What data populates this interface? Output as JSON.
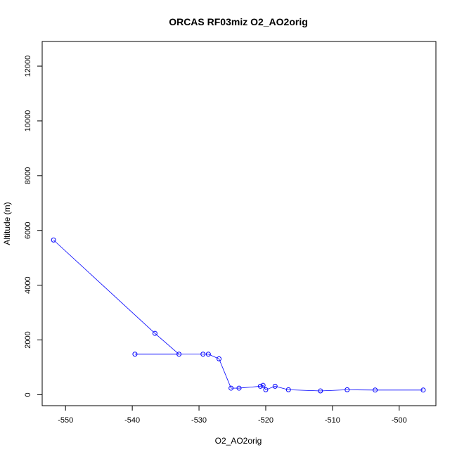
{
  "chart_data": {
    "type": "line",
    "title": "ORCAS RF03miz O2_AO2orig",
    "xlabel": "O2_AO2orig",
    "ylabel": "Altitude (m)",
    "xlim": [
      -553.5,
      -494.5
    ],
    "ylim": [
      -400,
      12900
    ],
    "x_ticks": [
      -550,
      -540,
      -530,
      -520,
      -510,
      -500
    ],
    "y_ticks": [
      0,
      2000,
      4000,
      6000,
      8000,
      10000,
      12000
    ],
    "grid": false,
    "legend": "none",
    "line_color": "#0000ff",
    "marker": "open-circle",
    "series": [
      {
        "values": [
          {
            "x": -551.8,
            "y": 5650
          },
          {
            "x": -536.6,
            "y": 2240
          },
          {
            "x": -533.0,
            "y": 1480
          },
          {
            "x": -539.6,
            "y": 1480
          },
          {
            "x": -529.4,
            "y": 1480
          },
          {
            "x": -528.6,
            "y": 1480
          },
          {
            "x": -527.0,
            "y": 1310
          },
          {
            "x": -525.2,
            "y": 240
          },
          {
            "x": -524.0,
            "y": 240
          },
          {
            "x": -520.8,
            "y": 310
          },
          {
            "x": -520.4,
            "y": 340
          },
          {
            "x": -520.0,
            "y": 180
          },
          {
            "x": -518.6,
            "y": 310
          },
          {
            "x": -516.6,
            "y": 180
          },
          {
            "x": -511.8,
            "y": 140
          },
          {
            "x": -507.8,
            "y": 180
          },
          {
            "x": -503.6,
            "y": 170
          },
          {
            "x": -496.4,
            "y": 170
          }
        ]
      }
    ]
  }
}
